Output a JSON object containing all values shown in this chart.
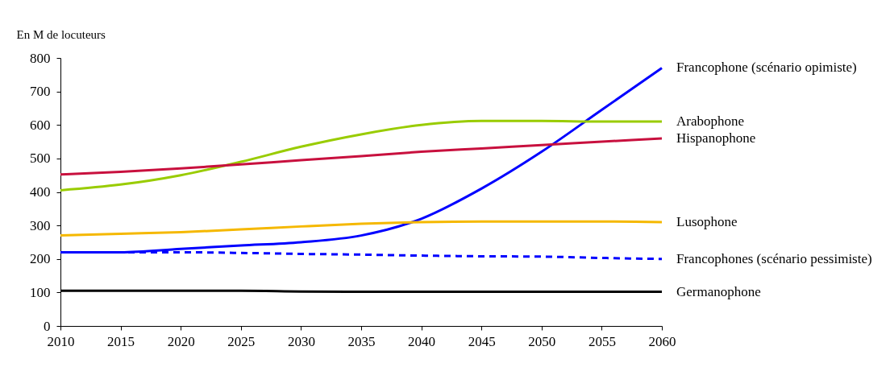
{
  "chart_data": {
    "type": "line",
    "ylabel": "En M de locuteurs",
    "x": [
      2010,
      2015,
      2020,
      2025,
      2030,
      2035,
      2040,
      2045,
      2050,
      2055,
      2060
    ],
    "series": [
      {
        "name": "Francophone (scénario opimiste)",
        "color": "#0000ff",
        "values": [
          220,
          220,
          230,
          240,
          250,
          270,
          320,
          410,
          520,
          645,
          770
        ]
      },
      {
        "name": "Arabophone",
        "color": "#99cc00",
        "values": [
          405,
          422,
          450,
          490,
          535,
          572,
          600,
          612,
          612,
          610,
          610
        ]
      },
      {
        "name": "Hispanophone",
        "color": "#c8103e",
        "values": [
          452,
          460,
          470,
          482,
          495,
          507,
          520,
          530,
          540,
          550,
          560
        ]
      },
      {
        "name": "Lusophone",
        "color": "#f5b800",
        "values": [
          270,
          275,
          280,
          288,
          297,
          305,
          310,
          312,
          312,
          312,
          310
        ]
      },
      {
        "name": "Francophones (scénario pessimiste)",
        "color": "#0000ff",
        "line_style": "dashed",
        "values": [
          220,
          220,
          220,
          218,
          215,
          213,
          210,
          208,
          207,
          203,
          200
        ]
      },
      {
        "name": "Germanophone",
        "color": "#000000",
        "values": [
          105,
          105,
          105,
          105,
          103,
          102,
          102,
          102,
          102,
          102,
          102
        ]
      }
    ],
    "xlim": [
      2010,
      2060
    ],
    "xticks": [
      2010,
      2015,
      2020,
      2025,
      2030,
      2035,
      2040,
      2045,
      2050,
      2055,
      2060
    ],
    "ylim": [
      0,
      800
    ],
    "yticks": [
      0,
      100,
      200,
      300,
      400,
      500,
      600,
      700,
      800
    ],
    "grid": false,
    "legend": false,
    "marker": "none",
    "line_style": "solid"
  }
}
